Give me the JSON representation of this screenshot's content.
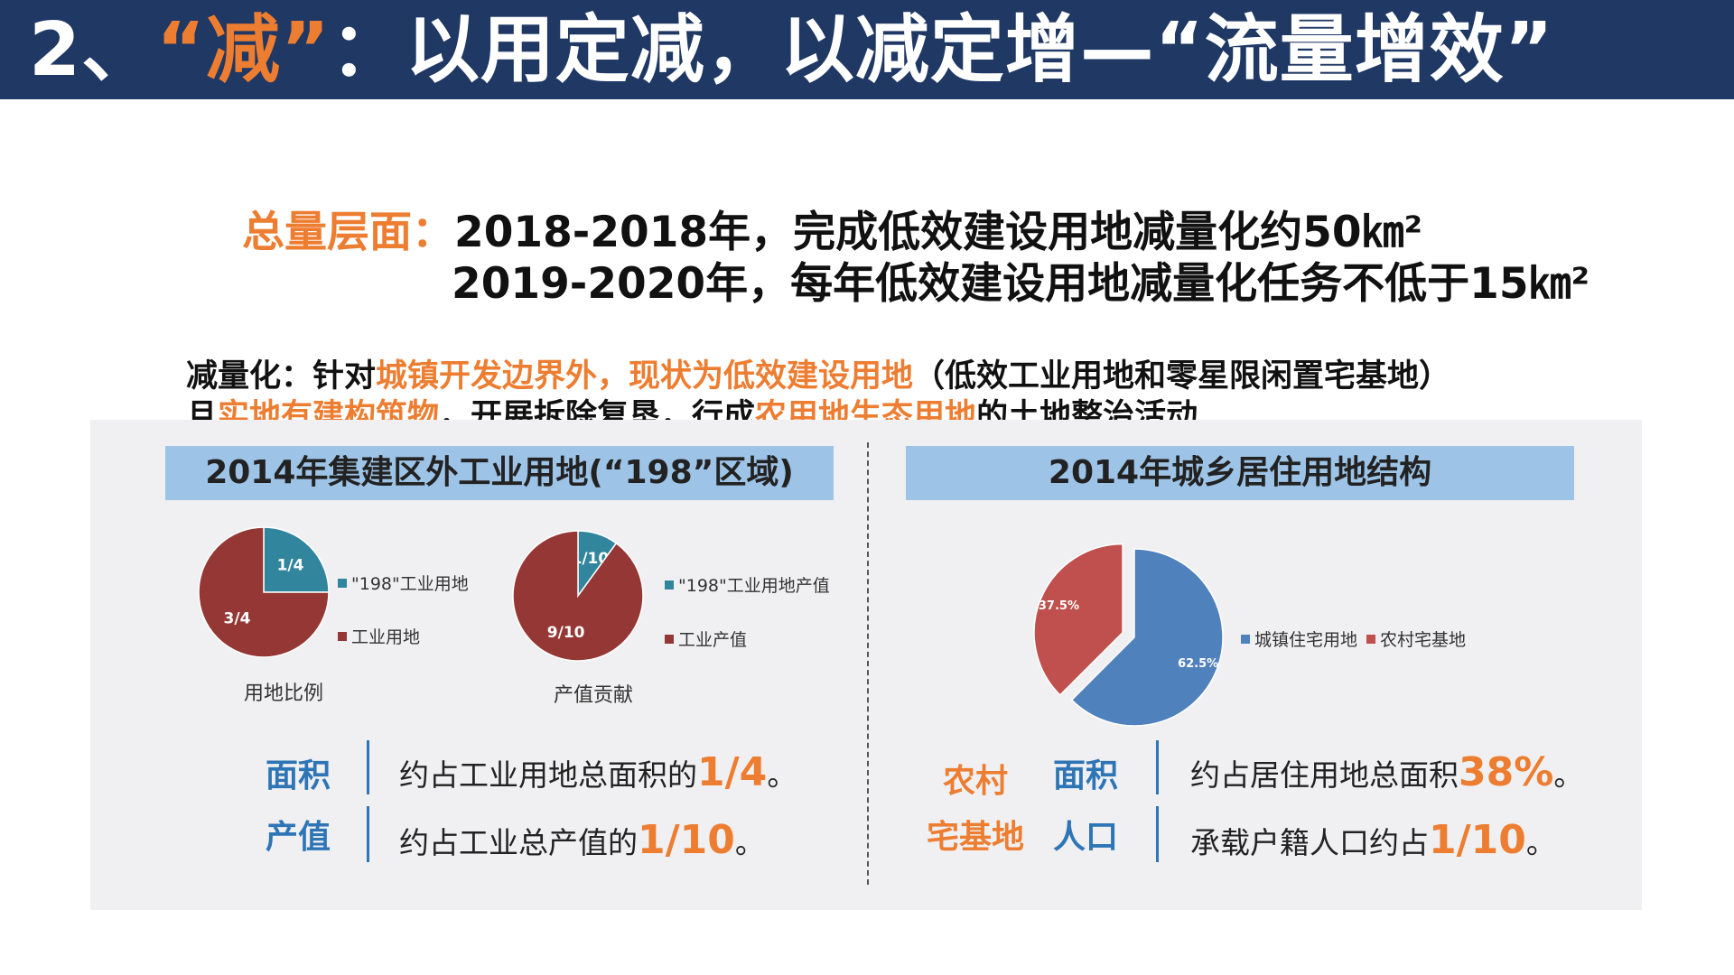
{
  "header": {
    "prefix": "2、",
    "accent": "“减”",
    "rest": "：以用定减，以减定增—“流量增效”"
  },
  "summary": {
    "label": "总量层面：",
    "line1": "2018-2018年，完成低效建设用地减量化约50㎞²",
    "line2": "2019-2020年，每年低效建设用地减量化任务不低于15㎞²"
  },
  "definition": {
    "l1a": "减量化：针对",
    "l1b": "城镇开发边界外，现状为低效建设用地",
    "l1c": "（低效工业用地和零星限闲置宅基地）",
    "l2a": "且",
    "l2b": "实地有建构筑物",
    "l2c": "，开展拆除复垦，行成",
    "l2d": "农用地生态用地",
    "l2e": "的土地整治活动"
  },
  "left_panel": {
    "title": "2014年集建区外工业用地(“198”区域)",
    "rows": [
      {
        "label": "面积",
        "text": "约占工业用地总面积的",
        "value": "1/4",
        "end": "。"
      },
      {
        "label": "产值",
        "text": "约占工业总产值的",
        "value": "1/10",
        "end": "。"
      }
    ]
  },
  "right_panel": {
    "title": "2014年城乡居住用地结构",
    "side_label": [
      "农村",
      "宅基地"
    ],
    "rows": [
      {
        "label": "面积",
        "text": "约占居住用地总面积",
        "value": "38%",
        "end": "。"
      },
      {
        "label": "人口",
        "text": "承载户籍人口约占",
        "value": "1/10",
        "end": "。"
      }
    ]
  },
  "colors": {
    "header_bg": "#1f3864",
    "accent": "#ed7d31",
    "teal": "#31859c",
    "maroon": "#953735",
    "blue": "#4f81bd",
    "red": "#c0504d",
    "bar": "#9dc3e6"
  },
  "chart_data": [
    {
      "type": "pie",
      "title": "用地比例",
      "labels": [
        "\"198\"工业用地",
        "工业用地"
      ],
      "values": [
        0.25,
        0.75
      ],
      "value_labels": [
        "1/4",
        "3/4"
      ],
      "colors": [
        "#31859c",
        "#953735"
      ],
      "legend": "right"
    },
    {
      "type": "pie",
      "title": "产值贡献",
      "labels": [
        "\"198\"工业用地产值",
        "工业产值"
      ],
      "values": [
        0.1,
        0.9
      ],
      "value_labels": [
        "1/10",
        "9/10"
      ],
      "colors": [
        "#31859c",
        "#953735"
      ],
      "legend": "right"
    },
    {
      "type": "pie",
      "labels": [
        "城镇住宅用地",
        "农村宅基地"
      ],
      "values": [
        62.5,
        37.5
      ],
      "value_labels": [
        "62.5%",
        "37.5%"
      ],
      "colors": [
        "#4f81bd",
        "#c0504d"
      ],
      "exploded": "农村宅基地",
      "legend": "right"
    }
  ]
}
